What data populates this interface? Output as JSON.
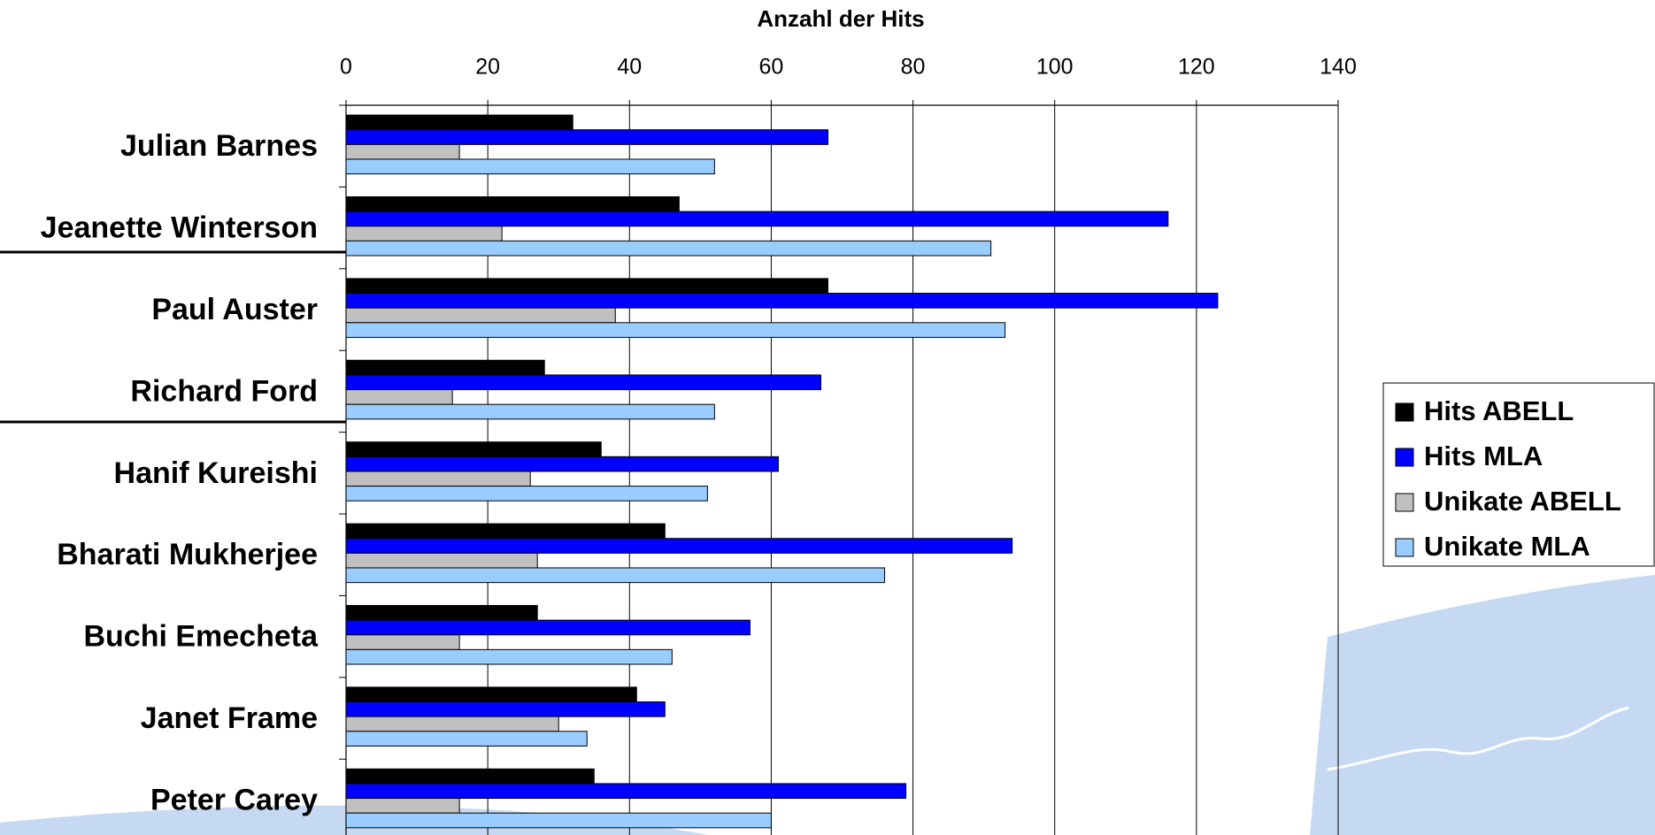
{
  "chart_data": {
    "type": "bar",
    "orientation": "horizontal",
    "title": "Anzahl der Hits",
    "categories": [
      "Julian Barnes",
      "Jeanette Winterson",
      "Paul Auster",
      "Richard Ford",
      "Hanif Kureishi",
      "Bharati Mukherjee",
      "Buchi Emecheta",
      "Janet Frame",
      "Peter Carey"
    ],
    "series": [
      {
        "name": "Hits ABELL",
        "color": "#000000",
        "values": [
          32,
          47,
          68,
          28,
          36,
          45,
          27,
          41,
          35
        ]
      },
      {
        "name": "Hits MLA",
        "color": "#0000ff",
        "values": [
          68,
          116,
          123,
          67,
          61,
          94,
          57,
          45,
          79
        ]
      },
      {
        "name": "Unikate ABELL",
        "color": "#c0c0c0",
        "values": [
          16,
          22,
          38,
          15,
          26,
          27,
          16,
          30,
          16
        ]
      },
      {
        "name": "Unikate MLA",
        "color": "#99ccff",
        "values": [
          52,
          91,
          93,
          52,
          51,
          76,
          46,
          34,
          60
        ]
      }
    ],
    "xlim": [
      0,
      140
    ],
    "xticks": [
      0,
      20,
      40,
      60,
      80,
      100,
      120,
      140
    ],
    "grid": true,
    "legend": "right"
  }
}
